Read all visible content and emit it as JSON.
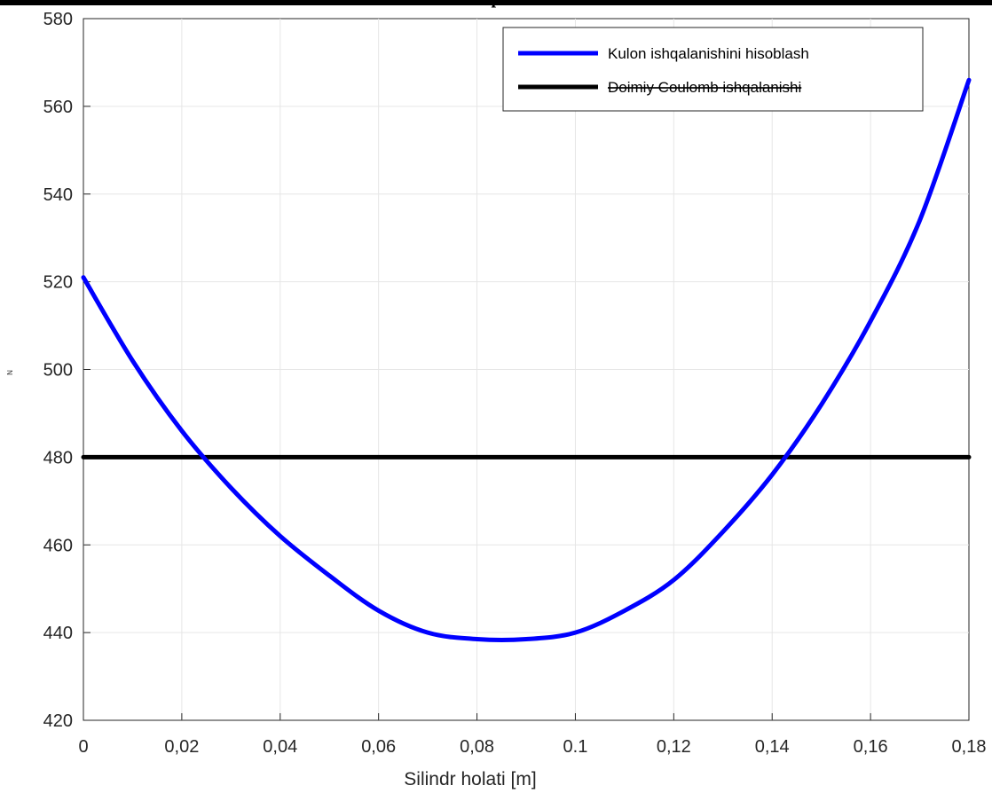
{
  "header": {
    "clipped_caption": "p"
  },
  "chart_data": {
    "type": "line",
    "title": "",
    "xlabel": "Silindr holati [m]",
    "ylabel": "N",
    "x_tick_labels": [
      "0",
      "0,02",
      "0,04",
      "0,06",
      "0,08",
      "0.1",
      "0,12",
      "0,14",
      "0,16",
      "0,18"
    ],
    "y_ticks": [
      420,
      440,
      460,
      480,
      500,
      520,
      540,
      560,
      580
    ],
    "xlim": [
      0,
      0.18
    ],
    "ylim": [
      420,
      580
    ],
    "grid": true,
    "legend_position": "top-right",
    "series": [
      {
        "name": "Kulon ishqalanishini hisoblash",
        "color": "#0000ff",
        "x": [
          0,
          0.01,
          0.02,
          0.03,
          0.04,
          0.05,
          0.06,
          0.07,
          0.08,
          0.09,
          0.1,
          0.11,
          0.12,
          0.13,
          0.14,
          0.15,
          0.16,
          0.17,
          0.18
        ],
        "y": [
          521,
          502,
          486,
          473,
          462,
          453,
          445,
          440,
          438.5,
          438.5,
          440,
          445,
          452,
          463,
          476,
          492,
          511,
          534,
          566
        ]
      },
      {
        "name": "Doimiy Coulomb ishqalanishi",
        "color": "#000000",
        "x": [
          0,
          0.18
        ],
        "y": [
          480,
          480
        ]
      }
    ]
  }
}
